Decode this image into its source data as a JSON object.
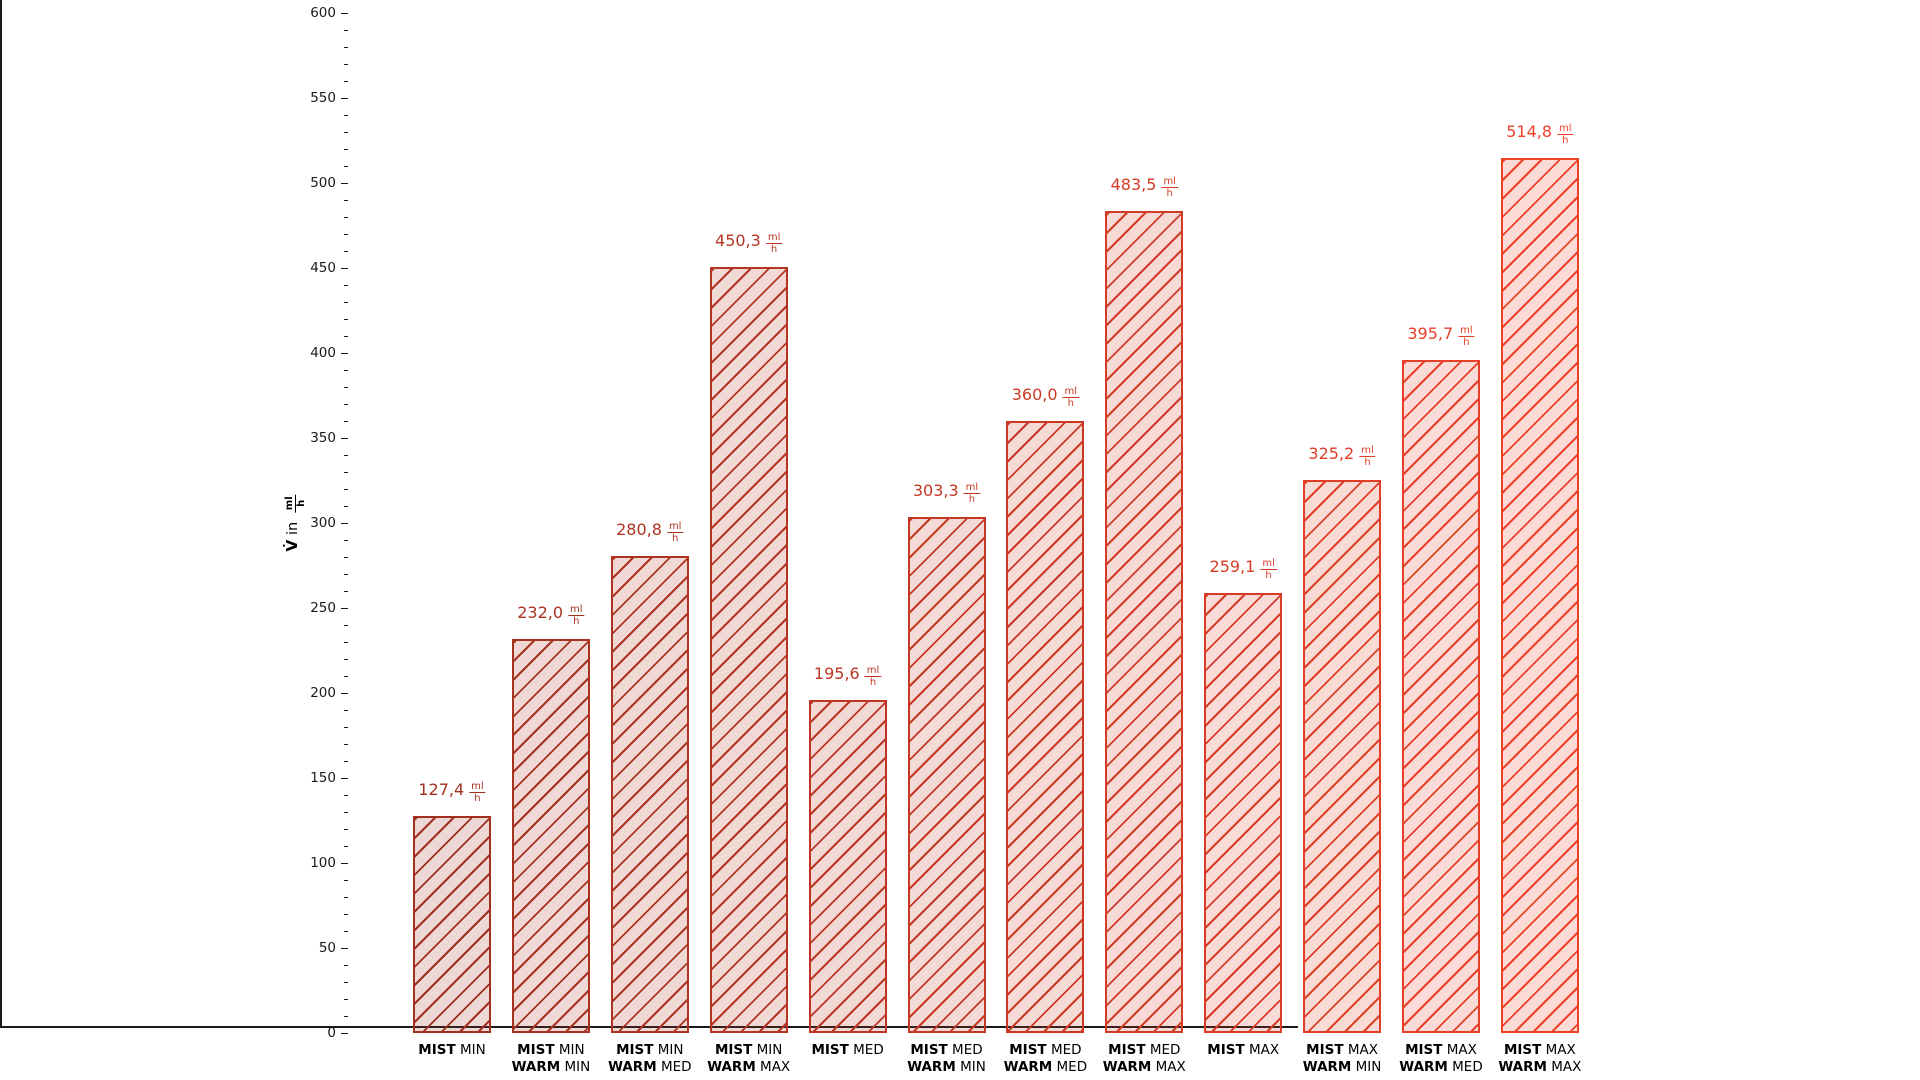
{
  "colors": {
    "axis": "#1a1a1a",
    "background": "#ffffff"
  },
  "chart_data": {
    "type": "bar",
    "title": "",
    "ylabel_symbol": "V̇",
    "ylabel_infix": "in",
    "unit": {
      "num": "ml",
      "den": "h"
    },
    "ylim": [
      0,
      600
    ],
    "ytick_step": 50,
    "ytick_minor_step": 10,
    "yticks": [
      "0",
      "50",
      "100",
      "150",
      "200",
      "250",
      "300",
      "350",
      "400",
      "450",
      "500",
      "550",
      "600"
    ],
    "grid": false,
    "legend": null,
    "hatch": "/",
    "values": [
      127.4,
      232.0,
      280.8,
      450.3,
      195.6,
      303.3,
      360.0,
      483.5,
      259.1,
      325.2,
      395.7,
      514.8
    ],
    "value_labels": [
      "127,4",
      "232,0",
      "280,8",
      "450,3",
      "195,6",
      "303,3",
      "360,0",
      "483,5",
      "259,1",
      "325,2",
      "395,7",
      "514,8"
    ],
    "bar_colors": [
      "#a1301f",
      "#a83220",
      "#af3321",
      "#b63522",
      "#bd3623",
      "#c43824",
      "#cb3924",
      "#d23b25",
      "#d93c26",
      "#e03e27",
      "#e73f28",
      "#ee4129"
    ],
    "categories": [
      {
        "lines": [
          [
            "MIST",
            "MIN"
          ]
        ]
      },
      {
        "lines": [
          [
            "MIST",
            "MIN"
          ],
          [
            "WARM",
            "MIN"
          ]
        ]
      },
      {
        "lines": [
          [
            "MIST",
            "MIN"
          ],
          [
            "WARM",
            "MED"
          ]
        ]
      },
      {
        "lines": [
          [
            "MIST",
            "MIN"
          ],
          [
            "WARM",
            "MAX"
          ]
        ]
      },
      {
        "lines": [
          [
            "MIST",
            "MED"
          ]
        ]
      },
      {
        "lines": [
          [
            "MIST",
            "MED"
          ],
          [
            "WARM",
            "MIN"
          ]
        ]
      },
      {
        "lines": [
          [
            "MIST",
            "MED"
          ],
          [
            "WARM",
            "MED"
          ]
        ]
      },
      {
        "lines": [
          [
            "MIST",
            "MED"
          ],
          [
            "WARM",
            "MAX"
          ]
        ]
      },
      {
        "lines": [
          [
            "MIST",
            "MAX"
          ]
        ]
      },
      {
        "lines": [
          [
            "MIST",
            "MAX"
          ],
          [
            "WARM",
            "MIN"
          ]
        ]
      },
      {
        "lines": [
          [
            "MIST",
            "MAX"
          ],
          [
            "WARM",
            "MED"
          ]
        ]
      },
      {
        "lines": [
          [
            "MIST",
            "MAX"
          ],
          [
            "WARM",
            "MAX"
          ]
        ]
      }
    ]
  }
}
